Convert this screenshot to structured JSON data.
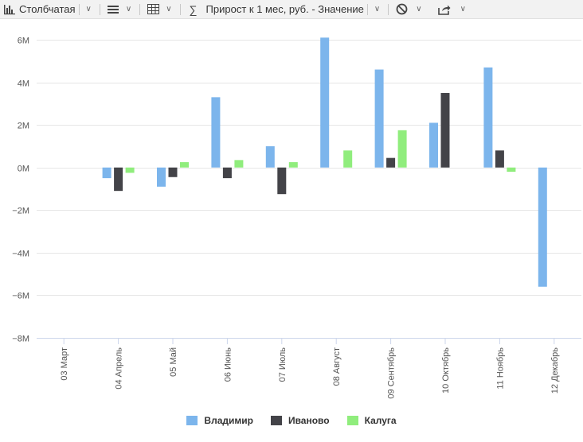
{
  "toolbar": {
    "chart_type_label": "Столбчатая",
    "measure_label": "Прирост к 1 мес, руб. - Значение"
  },
  "colors": {
    "vladimir": "#7cb5ec",
    "ivanovo": "#434348",
    "kaluga": "#90ed7d",
    "grid": "#e6e6e6",
    "axis_text": "#666666"
  },
  "chart_data": {
    "type": "bar",
    "title": "",
    "xlabel": "",
    "ylabel": "",
    "ylim": [
      -8000000,
      6000000
    ],
    "yticks": [
      -8000000,
      -6000000,
      -4000000,
      -2000000,
      0,
      2000000,
      4000000,
      6000000
    ],
    "ytick_labels": [
      "−8M",
      "−6M",
      "−4M",
      "−2M",
      "0M",
      "2M",
      "4M",
      "6M"
    ],
    "categories": [
      "03 Март",
      "04 Апрель",
      "05 Май",
      "06 Июнь",
      "07 Июль",
      "08 Август",
      "09 Сентябрь",
      "10 Октябрь",
      "11 Ноябрь",
      "12 Декабрь"
    ],
    "series": [
      {
        "name": "Владимир",
        "values": [
          0,
          -500000,
          -900000,
          3300000,
          1000000,
          6100000,
          4600000,
          2100000,
          4700000,
          -5600000
        ]
      },
      {
        "name": "Иваново",
        "values": [
          0,
          -1100000,
          -450000,
          -500000,
          -1250000,
          0,
          450000,
          3500000,
          800000,
          0
        ]
      },
      {
        "name": "Калуга",
        "values": [
          0,
          -250000,
          250000,
          350000,
          250000,
          800000,
          1750000,
          0,
          -200000,
          0
        ]
      }
    ],
    "legend_position": "bottom-center",
    "grid": true
  }
}
